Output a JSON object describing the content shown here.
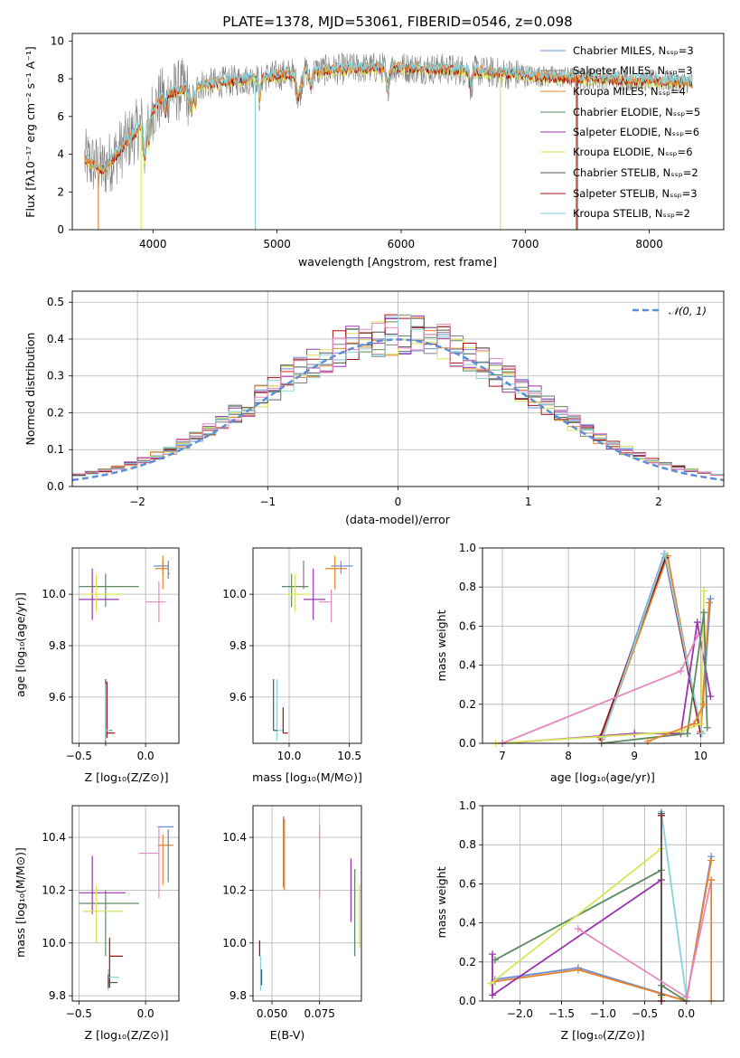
{
  "colors": {
    "chabrier_miles": "#6b8fd9",
    "salpeter_miles": "#7f7f7f",
    "kroupa_miles": "#e8822a",
    "chabrier_elodie": "#5f8a60",
    "salpeter_elodie": "#9b33b0",
    "kroupa_elodie": "#d6e55a",
    "chabrier_stelib": "#555555",
    "salpeter_stelib": "#a01010",
    "kroupa_stelib": "#87d3dd",
    "normal": "#5b8fd6",
    "pink": "#e688c0"
  },
  "chart_data": [
    {
      "id": "spectrum",
      "type": "line",
      "title": "PLATE=1378, MJD=53061, FIBERID=0546, z=0.098",
      "xlabel": "wavelength [Angstrom, rest frame]",
      "ylabel": "Flux [fλ10⁻¹⁷ erg cm⁻² s⁻¹ A⁻¹]",
      "xlim": [
        3350,
        8600
      ],
      "ylim": [
        0,
        10.4
      ],
      "xticks": [
        "4000",
        "5000",
        "6000",
        "7000",
        "8000"
      ],
      "yticks": [
        "0",
        "2",
        "4",
        "6",
        "8",
        "10"
      ],
      "continuum": [
        [
          3450,
          3.7
        ],
        [
          3600,
          3.2
        ],
        [
          3900,
          5.5
        ],
        [
          4100,
          7.2
        ],
        [
          4400,
          7.7
        ],
        [
          4800,
          8.0
        ],
        [
          5200,
          8.35
        ],
        [
          5600,
          8.55
        ],
        [
          6000,
          8.6
        ],
        [
          6400,
          8.5
        ],
        [
          6800,
          8.3
        ],
        [
          7200,
          8.1
        ],
        [
          7600,
          8.0
        ],
        [
          8000,
          7.9
        ],
        [
          8350,
          7.8
        ]
      ],
      "legend_placement": "upper-right",
      "legend": [
        "Chabrier MILES, Nₛₛₚ=3",
        "Salpeter MILES, Nₛₛₚ=3",
        "Kroupa MILES, Nₛₛₚ=4",
        "Chabrier ELODIE, Nₛₛₚ=5",
        "Salpeter ELODIE, Nₛₛₚ=6",
        "Kroupa ELODIE, Nₛₛₚ=6",
        "Chabrier STELIB, Nₛₛₚ=2",
        "Salpeter STELIB, Nₛₛₚ=3",
        "Kroupa STELIB, Nₛₛₚ=2"
      ],
      "legend_colors": [
        "#6b8fd9",
        "#7f7f7f",
        "#e8822a",
        "#5f8a60",
        "#9b33b0",
        "#d6e55a",
        "#555555",
        "#a01010",
        "#87d3dd"
      ]
    },
    {
      "id": "residuals",
      "type": "bar",
      "xlabel": "(data-model)/error",
      "ylabel": "Normed distribution",
      "xlim": [
        -2.5,
        2.5
      ],
      "ylim": [
        0,
        0.53
      ],
      "xticks": [
        "−2",
        "−1",
        "0",
        "1",
        "2"
      ],
      "xtick_values": [
        -2,
        -1,
        0,
        1,
        2
      ],
      "yticks": [
        "0.0",
        "0.1",
        "0.2",
        "0.3",
        "0.4",
        "0.5"
      ],
      "ytick_values": [
        0,
        0.1,
        0.2,
        0.3,
        0.4,
        0.5
      ],
      "bin_width": 0.1,
      "normal_label": "𝒩(0, 1)",
      "legend_placement": "upper-right"
    },
    {
      "id": "age-z",
      "type": "scatter",
      "xlabel": "Z [log₁₀(Z/Z⊙)]",
      "ylabel": "age  [log₁₀(age/yr)]",
      "xlim": [
        -0.55,
        0.25
      ],
      "ylim": [
        9.42,
        10.18
      ],
      "xticks": [
        "−0.5",
        "0.0"
      ],
      "xtick_values": [
        -0.5,
        0.0
      ],
      "yticks": [
        "9.6",
        "9.8",
        "10.0"
      ],
      "ytick_values": [
        9.6,
        9.8,
        10.0
      ]
    },
    {
      "id": "age-mass",
      "type": "scatter",
      "xlabel": "mass [log₁₀(M/M⊙)]",
      "xlim": [
        9.7,
        10.6
      ],
      "ylim": [
        9.42,
        10.18
      ],
      "xticks": [
        "10.0",
        "10.5"
      ],
      "xtick_values": [
        10.0,
        10.5
      ],
      "yticks": [
        "9.6",
        "9.8",
        "10.0"
      ],
      "ytick_values": [
        9.6,
        9.8,
        10.0
      ]
    },
    {
      "id": "weight-age",
      "type": "line",
      "xlabel": "age  [log₁₀(age/yr)]",
      "ylabel": "mass weight",
      "xlim": [
        6.7,
        10.35
      ],
      "ylim": [
        0,
        1
      ],
      "xticks": [
        "7",
        "8",
        "9",
        "10"
      ],
      "xtick_values": [
        7,
        8,
        9,
        10
      ],
      "yticks": [
        "0.0",
        "0.2",
        "0.4",
        "0.6",
        "0.8",
        "1.0"
      ],
      "ytick_values": [
        0,
        0.2,
        0.4,
        0.6,
        0.8,
        1.0
      ]
    },
    {
      "id": "mass-z",
      "type": "scatter",
      "xlabel": "Z [log₁₀(Z/Z⊙)]",
      "ylabel": "mass [log₁₀(M/M⊙)]",
      "xlim": [
        -0.55,
        0.25
      ],
      "ylim": [
        9.78,
        10.52
      ],
      "xticks": [
        "−0.5",
        "0.0"
      ],
      "xtick_values": [
        -0.5,
        0.0
      ],
      "yticks": [
        "9.8",
        "10.0",
        "10.2",
        "10.4"
      ],
      "ytick_values": [
        9.8,
        10.0,
        10.2,
        10.4
      ]
    },
    {
      "id": "mass-ebv",
      "type": "scatter",
      "xlabel": "E(B-V)",
      "xlim": [
        0.04,
        0.097
      ],
      "ylim": [
        9.78,
        10.52
      ],
      "xticks": [
        "0.050",
        "0.075"
      ],
      "xtick_values": [
        0.05,
        0.075
      ],
      "yticks": [
        "9.8",
        "10.0",
        "10.2",
        "10.4"
      ],
      "ytick_values": [
        9.8,
        10.0,
        10.2,
        10.4
      ]
    },
    {
      "id": "weight-z",
      "type": "line",
      "xlabel": "Z [log₁₀(Z/Z⊙)]",
      "ylabel": "mass weight",
      "xlim": [
        -2.45,
        0.45
      ],
      "ylim": [
        0,
        1
      ],
      "xticks": [
        "−2.0",
        "−1.5",
        "−1.0",
        "−0.5",
        "0.0"
      ],
      "xtick_values": [
        -2.0,
        -1.5,
        -1.0,
        -0.5,
        0.0
      ],
      "yticks": [
        "0.0",
        "0.2",
        "0.4",
        "0.6",
        "0.8",
        "1.0"
      ],
      "ytick_values": [
        0,
        0.2,
        0.4,
        0.6,
        0.8,
        1.0
      ]
    }
  ]
}
